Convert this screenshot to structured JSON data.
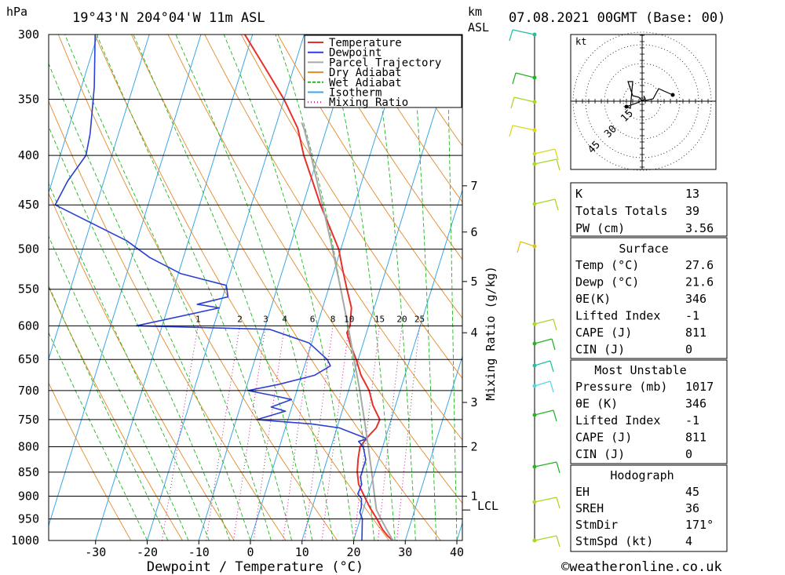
{
  "header": {
    "pressure_unit": "hPa",
    "location": "19°43'N  204°04'W  11m  ASL",
    "km_unit_1": "km",
    "km_unit_2": "ASL",
    "datetime": "07.08.2021  00GMT  (Base: 00)"
  },
  "chart_data": {
    "type": "line",
    "title": "",
    "xlabel": "Dewpoint / Temperature (°C)",
    "ylabel": "hPa",
    "xlim": [
      -40,
      40
    ],
    "ylim": [
      1000,
      300
    ],
    "x_ticks": [
      "-30",
      "-20",
      "-10",
      "0",
      "10",
      "20",
      "30",
      "40"
    ],
    "y_ticks": [
      "300",
      "350",
      "400",
      "450",
      "500",
      "550",
      "600",
      "650",
      "700",
      "750",
      "800",
      "850",
      "900",
      "950",
      "1000"
    ],
    "height_ticks_km": [
      "7",
      "6",
      "5",
      "4",
      "3",
      "2",
      "1"
    ],
    "height_tick_pressure": [
      430,
      480,
      540,
      610,
      720,
      800,
      900
    ],
    "lcl_label": "LCL",
    "lcl_pressure": 930,
    "mixing_ratio_label": "Mixing Ratio (g/kg)",
    "mixing_ratio_values": [
      "1",
      "2",
      "3",
      "4",
      "6",
      "8",
      "10",
      "15",
      "20",
      "25"
    ],
    "legend": [
      "Temperature",
      "Dewpoint",
      "Parcel Trajectory",
      "Dry Adiabat",
      "Wet Adiabat",
      "Isotherm",
      "Mixing Ratio"
    ],
    "colors": {
      "temperature": "#e8302a",
      "dewpoint": "#2a3fd4",
      "parcel": "#a8a8a8",
      "dry_adiabat": "#e48a28",
      "wet_adiabat": "#22b422",
      "isotherm": "#3aa6e8",
      "mixing_ratio": "#c0208e"
    },
    "series": [
      {
        "name": "Temperature",
        "points": [
          [
            1000,
            27.6
          ],
          [
            990,
            26.4
          ],
          [
            975,
            25.0
          ],
          [
            950,
            23.2
          ],
          [
            925,
            21.2
          ],
          [
            900,
            19.4
          ],
          [
            875,
            17.6
          ],
          [
            850,
            16.6
          ],
          [
            825,
            16.0
          ],
          [
            800,
            15.6
          ],
          [
            780,
            16.6
          ],
          [
            765,
            17.6
          ],
          [
            750,
            17.8
          ],
          [
            725,
            15.6
          ],
          [
            700,
            14.0
          ],
          [
            675,
            11.5
          ],
          [
            650,
            9.6
          ],
          [
            625,
            7.4
          ],
          [
            610,
            6.2
          ],
          [
            600,
            6.4
          ],
          [
            575,
            5.6
          ],
          [
            550,
            3.6
          ],
          [
            525,
            1.6
          ],
          [
            500,
            -0.4
          ],
          [
            475,
            -3.4
          ],
          [
            450,
            -6.6
          ],
          [
            425,
            -9.6
          ],
          [
            400,
            -12.8
          ],
          [
            375,
            -15.6
          ],
          [
            350,
            -20.0
          ],
          [
            325,
            -25.5
          ],
          [
            300,
            -31.5
          ]
        ]
      },
      {
        "name": "Dewpoint",
        "points": [
          [
            1000,
            21.6
          ],
          [
            975,
            21.0
          ],
          [
            950,
            20.4
          ],
          [
            935,
            19.5
          ],
          [
            925,
            19.5
          ],
          [
            905,
            19.0
          ],
          [
            895,
            18.0
          ],
          [
            875,
            18.2
          ],
          [
            860,
            17.5
          ],
          [
            850,
            17.5
          ],
          [
            825,
            17.5
          ],
          [
            800,
            16.2
          ],
          [
            790,
            15.0
          ],
          [
            785,
            16.5
          ],
          [
            770,
            12.0
          ],
          [
            765,
            10.5
          ],
          [
            758,
            5.0
          ],
          [
            750,
            -6.0
          ],
          [
            735,
            -1.0
          ],
          [
            728,
            -4.0
          ],
          [
            715,
            -0.5
          ],
          [
            708,
            -4.5
          ],
          [
            700,
            -9.5
          ],
          [
            690,
            -4.0
          ],
          [
            675,
            2.5
          ],
          [
            660,
            5.0
          ],
          [
            650,
            4.0
          ],
          [
            625,
            -0.5
          ],
          [
            605,
            -9.0
          ],
          [
            600,
            -35.0
          ],
          [
            575,
            -20.0
          ],
          [
            570,
            -24.5
          ],
          [
            560,
            -19.0
          ],
          [
            545,
            -20.0
          ],
          [
            530,
            -29.5
          ],
          [
            510,
            -36.5
          ],
          [
            490,
            -42.0
          ],
          [
            450,
            -58.0
          ],
          [
            425,
            -57.0
          ],
          [
            400,
            -55.0
          ],
          [
            380,
            -55.5
          ],
          [
            340,
            -57.5
          ],
          [
            300,
            -60.5
          ]
        ]
      },
      {
        "name": "Parcel Trajectory",
        "points": [
          [
            1000,
            27.6
          ],
          [
            975,
            25.8
          ],
          [
            950,
            24.0
          ],
          [
            930,
            22.6
          ],
          [
            900,
            21.4
          ],
          [
            850,
            19.4
          ],
          [
            800,
            17.2
          ],
          [
            750,
            14.8
          ],
          [
            700,
            12.2
          ],
          [
            650,
            9.2
          ],
          [
            600,
            6.0
          ],
          [
            550,
            2.4
          ],
          [
            500,
            -1.6
          ],
          [
            450,
            -6.2
          ],
          [
            400,
            -11.4
          ],
          [
            375,
            -14.4
          ],
          [
            370,
            -15.2
          ]
        ]
      }
    ]
  },
  "hodograph": {
    "unit": "kt",
    "ring_labels": [
      "15",
      "30",
      "45"
    ]
  },
  "indices": {
    "rows": [
      {
        "label": "K",
        "value": "13"
      },
      {
        "label": "Totals Totals",
        "value": "39"
      },
      {
        "label": "PW (cm)",
        "value": "3.56"
      }
    ]
  },
  "surface": {
    "title": "Surface",
    "rows": [
      {
        "label": "Temp (°C)",
        "value": "27.6"
      },
      {
        "label": "Dewp (°C)",
        "value": "21.6"
      },
      {
        "label": "θE(K)",
        "value": "346"
      },
      {
        "label": "Lifted Index",
        "value": "-1"
      },
      {
        "label": "CAPE (J)",
        "value": "811"
      },
      {
        "label": "CIN (J)",
        "value": "0"
      }
    ]
  },
  "most_unstable": {
    "title": "Most Unstable",
    "rows": [
      {
        "label": "Pressure (mb)",
        "value": "1017"
      },
      {
        "label": "θE (K)",
        "value": "346"
      },
      {
        "label": "Lifted Index",
        "value": "-1"
      },
      {
        "label": "CAPE (J)",
        "value": "811"
      },
      {
        "label": "CIN (J)",
        "value": "0"
      }
    ]
  },
  "hodograph_box": {
    "title": "Hodograph",
    "rows": [
      {
        "label": "EH",
        "value": "45"
      },
      {
        "label": "SREH",
        "value": "36"
      },
      {
        "label": "StmDir",
        "value": "171°"
      },
      {
        "label": "StmSpd (kt)",
        "value": "4"
      }
    ]
  },
  "footer": {
    "copyright": "©weatheronline.co.uk"
  }
}
